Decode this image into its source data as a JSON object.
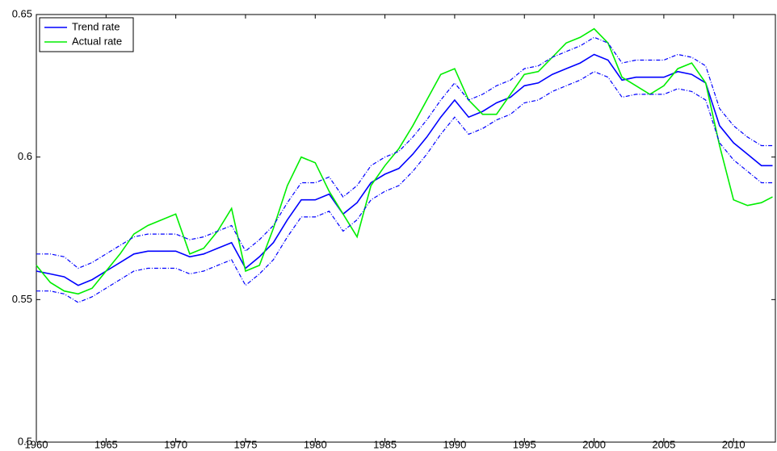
{
  "chart_data": {
    "type": "line",
    "x": [
      1960,
      1961,
      1962,
      1963,
      1964,
      1965,
      1966,
      1967,
      1968,
      1969,
      1970,
      1971,
      1972,
      1973,
      1974,
      1975,
      1976,
      1977,
      1978,
      1979,
      1980,
      1981,
      1982,
      1983,
      1984,
      1985,
      1986,
      1987,
      1988,
      1989,
      1990,
      1991,
      1992,
      1993,
      1994,
      1995,
      1996,
      1997,
      1998,
      1999,
      2000,
      2001,
      2002,
      2003,
      2004,
      2005,
      2006,
      2007,
      2008,
      2009,
      2010,
      2011,
      2012,
      2012.8
    ],
    "series": [
      {
        "name": "Trend rate",
        "color": "#0000ff",
        "values": [
          0.56,
          0.559,
          0.558,
          0.555,
          0.557,
          0.56,
          0.563,
          0.566,
          0.567,
          0.567,
          0.567,
          0.565,
          0.566,
          0.568,
          0.57,
          0.561,
          0.565,
          0.57,
          0.578,
          0.585,
          0.585,
          0.587,
          0.58,
          0.584,
          0.591,
          0.594,
          0.596,
          0.601,
          0.607,
          0.614,
          0.62,
          0.614,
          0.616,
          0.619,
          0.621,
          0.625,
          0.626,
          0.629,
          0.631,
          0.633,
          0.636,
          0.634,
          0.627,
          0.628,
          0.628,
          0.628,
          0.63,
          0.629,
          0.626,
          0.611,
          0.605,
          0.601,
          0.597,
          0.597
        ]
      },
      {
        "name": "Actual rate",
        "color": "#00ee00",
        "values": [
          0.562,
          0.556,
          0.553,
          0.552,
          0.554,
          0.56,
          0.566,
          0.573,
          0.576,
          0.578,
          0.58,
          0.566,
          0.568,
          0.574,
          0.582,
          0.56,
          0.562,
          0.575,
          0.59,
          0.6,
          0.598,
          0.588,
          0.58,
          0.572,
          0.59,
          0.597,
          0.603,
          0.611,
          0.62,
          0.629,
          0.631,
          0.62,
          0.615,
          0.615,
          0.622,
          0.629,
          0.63,
          0.635,
          0.64,
          0.642,
          0.645,
          0.64,
          0.628,
          0.625,
          0.622,
          0.625,
          0.631,
          0.633,
          0.626,
          0.604,
          0.585,
          0.583,
          0.584,
          0.586
        ]
      },
      {
        "color": "#0000ff",
        "dashed": true,
        "values": [
          0.566,
          0.566,
          0.565,
          0.561,
          0.563,
          0.566,
          0.569,
          0.572,
          0.573,
          0.573,
          0.573,
          0.571,
          0.572,
          0.574,
          0.576,
          0.567,
          0.571,
          0.576,
          0.584,
          0.591,
          0.591,
          0.593,
          0.586,
          0.59,
          0.597,
          0.6,
          0.602,
          0.607,
          0.613,
          0.62,
          0.626,
          0.62,
          0.622,
          0.625,
          0.627,
          0.631,
          0.632,
          0.635,
          0.637,
          0.639,
          0.642,
          0.64,
          0.633,
          0.634,
          0.634,
          0.634,
          0.636,
          0.635,
          0.632,
          0.617,
          0.611,
          0.607,
          0.604,
          0.604
        ]
      },
      {
        "color": "#0000ff",
        "dashed": true,
        "values": [
          0.553,
          0.553,
          0.552,
          0.549,
          0.551,
          0.554,
          0.557,
          0.56,
          0.561,
          0.561,
          0.561,
          0.559,
          0.56,
          0.562,
          0.564,
          0.555,
          0.559,
          0.564,
          0.572,
          0.579,
          0.579,
          0.581,
          0.574,
          0.578,
          0.585,
          0.588,
          0.59,
          0.595,
          0.601,
          0.608,
          0.614,
          0.608,
          0.61,
          0.613,
          0.615,
          0.619,
          0.62,
          0.623,
          0.625,
          0.627,
          0.63,
          0.628,
          0.621,
          0.622,
          0.622,
          0.622,
          0.624,
          0.623,
          0.62,
          0.605,
          0.599,
          0.595,
          0.591,
          0.591
        ]
      }
    ],
    "xlim": [
      1960,
      2013
    ],
    "xticks": [
      1960,
      1965,
      1970,
      1975,
      1980,
      1985,
      1990,
      1995,
      2000,
      2005,
      2010
    ],
    "ylim": [
      0.5,
      0.65
    ],
    "yticks": [
      0.5,
      0.55,
      0.6,
      0.65
    ],
    "legend": "upper left"
  }
}
